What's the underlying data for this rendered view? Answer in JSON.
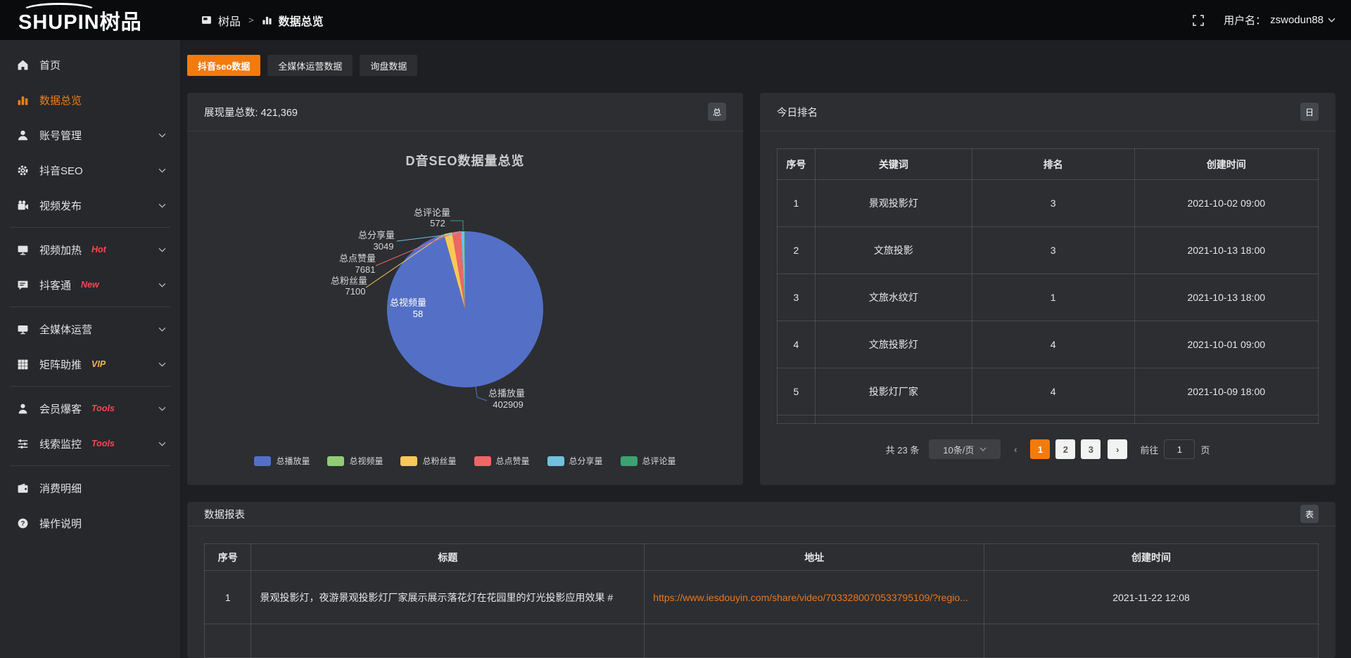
{
  "topbar": {
    "logo_text": "SHUPIN树品",
    "breadcrumb": {
      "root": "树品",
      "separator": ">",
      "current": "数据总览"
    },
    "username_label": "用户名：",
    "username": "zswodun88"
  },
  "sidebar": {
    "items": [
      {
        "label": "首页",
        "icon": "home",
        "expandable": false,
        "active": false
      },
      {
        "label": "数据总览",
        "icon": "bar-chart",
        "expandable": false,
        "active": true
      },
      {
        "label": "账号管理",
        "icon": "user",
        "expandable": true,
        "active": false
      },
      {
        "label": "抖音SEO",
        "icon": "gear",
        "expandable": true,
        "active": false
      },
      {
        "label": "视频发布",
        "icon": "video-camera",
        "expandable": true,
        "active": false,
        "divider_after": true
      },
      {
        "label": "视频加热",
        "icon": "screen",
        "tag": "Hot",
        "tag_color": "#f5484d",
        "expandable": true,
        "active": false
      },
      {
        "label": "抖客通",
        "icon": "chat",
        "tag": "New",
        "tag_color": "#f5484d",
        "expandable": true,
        "active": false,
        "divider_after": true
      },
      {
        "label": "全媒体运营",
        "icon": "monitor",
        "expandable": true,
        "active": false
      },
      {
        "label": "矩阵助推",
        "icon": "grid",
        "tag": "VIP",
        "tag_color": "#f0b64a",
        "expandable": true,
        "active": false,
        "divider_after": true
      },
      {
        "label": "会员爆客",
        "icon": "person",
        "tag": "Tools",
        "tag_color": "#f5484d",
        "expandable": true,
        "active": false
      },
      {
        "label": "线索监控",
        "icon": "sliders",
        "tag": "Tools",
        "tag_color": "#f5484d",
        "expandable": true,
        "active": false,
        "divider_after": true
      },
      {
        "label": "消费明细",
        "icon": "wallet",
        "expandable": false,
        "active": false
      },
      {
        "label": "操作说明",
        "icon": "question",
        "expandable": false,
        "active": false
      }
    ]
  },
  "tabs": [
    {
      "label": "抖音seo数据",
      "active": true
    },
    {
      "label": "全媒体运营数据",
      "active": false
    },
    {
      "label": "询盘数据",
      "active": false
    }
  ],
  "overview_card": {
    "summary_label": "展现量总数:",
    "summary_value": "421,369",
    "badge": "总"
  },
  "chart_data": {
    "type": "pie",
    "title": "D音SEO数据量总览",
    "legend_position": "bottom",
    "total": 421369,
    "slices": [
      {
        "name": "总播放量",
        "value": 402909,
        "color": "#5470c6"
      },
      {
        "name": "总视频量",
        "value": 58,
        "color": "#91cc75"
      },
      {
        "name": "总粉丝量",
        "value": 7100,
        "color": "#fac858"
      },
      {
        "name": "总点赞量",
        "value": 7681,
        "color": "#ee6666"
      },
      {
        "name": "总分享量",
        "value": 3049,
        "color": "#73c0de"
      },
      {
        "name": "总评论量",
        "value": 572,
        "color": "#3ba272"
      }
    ]
  },
  "ranking_card": {
    "title": "今日排名",
    "badge": "日",
    "columns": [
      "序号",
      "关键词",
      "排名",
      "创建时间"
    ],
    "rows": [
      [
        "1",
        "景观投影灯",
        "3",
        "2021-10-02 09:00"
      ],
      [
        "2",
        "文旅投影",
        "3",
        "2021-10-13 18:00"
      ],
      [
        "3",
        "文旅水纹灯",
        "1",
        "2021-10-13 18:00"
      ],
      [
        "4",
        "文旅投影灯",
        "4",
        "2021-10-01 09:00"
      ],
      [
        "5",
        "投影灯厂家",
        "4",
        "2021-10-09 18:00"
      ]
    ],
    "pagination": {
      "total": "共 23 条",
      "page_size": "10条/页",
      "prev": "‹",
      "pages": [
        "1",
        "2",
        "3"
      ],
      "active": "1",
      "next": "›",
      "goto_label": "前往",
      "goto_value": "1",
      "goto_unit": "页"
    }
  },
  "report_card": {
    "title": "数据报表",
    "badge": "表",
    "columns": [
      "序号",
      "标题",
      "地址",
      "创建时间"
    ],
    "rows": [
      {
        "index": "1",
        "title": "景观投影灯，夜游景观投影灯厂家展示展示落花灯在花园里的灯光投影应用效果 #",
        "url": "https://www.iesdouyin.com/share/video/7033280070533795109/?regio...",
        "created": "2021-11-22 12:08"
      }
    ]
  },
  "colors": {
    "accent": "#f57a0c",
    "link": "#ee7718",
    "tag_red": "#f5484d",
    "tag_gold": "#f0b64a"
  }
}
